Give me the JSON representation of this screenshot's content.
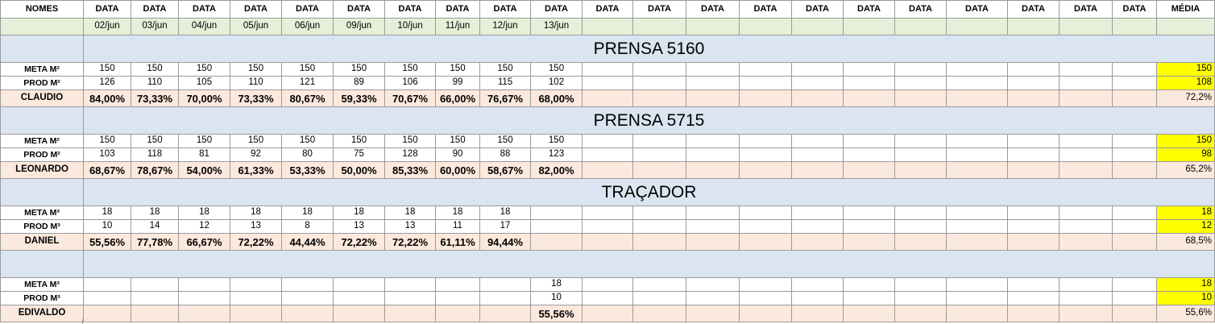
{
  "header": {
    "nomes": "NOMES",
    "data_label": "DATA",
    "media": "MÉDIA"
  },
  "dates": [
    "02/jun",
    "03/jun",
    "04/jun",
    "05/jun",
    "06/jun",
    "09/jun",
    "10/jun",
    "11/jun",
    "12/jun",
    "13/jun",
    "",
    "",
    "",
    "",
    "",
    "",
    "",
    "",
    "",
    "",
    ""
  ],
  "sections": [
    {
      "title": "PRENSA 5160",
      "meta_label": "META M²",
      "prod_label": "PROD M²",
      "person": "CLAUDIO",
      "meta": [
        "150",
        "150",
        "150",
        "150",
        "150",
        "150",
        "150",
        "150",
        "150",
        "150"
      ],
      "prod": [
        "126",
        "110",
        "105",
        "110",
        "121",
        "89",
        "106",
        "99",
        "115",
        "102"
      ],
      "pct": [
        "84,00%",
        "73,33%",
        "70,00%",
        "73,33%",
        "80,67%",
        "59,33%",
        "70,67%",
        "66,00%",
        "76,67%",
        "68,00%"
      ],
      "avg_meta": "150",
      "avg_prod": "108",
      "avg_pct": "72,2%"
    },
    {
      "title": "PRENSA 5715",
      "meta_label": "META M²",
      "prod_label": "PROD M²",
      "person": "LEONARDO",
      "meta": [
        "150",
        "150",
        "150",
        "150",
        "150",
        "150",
        "150",
        "150",
        "150",
        "150"
      ],
      "prod": [
        "103",
        "118",
        "81",
        "92",
        "80",
        "75",
        "128",
        "90",
        "88",
        "123"
      ],
      "pct": [
        "68,67%",
        "78,67%",
        "54,00%",
        "61,33%",
        "53,33%",
        "50,00%",
        "85,33%",
        "60,00%",
        "58,67%",
        "82,00%"
      ],
      "avg_meta": "150",
      "avg_prod": "98",
      "avg_pct": "65,2%"
    },
    {
      "title": "TRAÇADOR",
      "meta_label": "META M³",
      "prod_label": "PROD M³",
      "person": "DANIEL",
      "meta": [
        "18",
        "18",
        "18",
        "18",
        "18",
        "18",
        "18",
        "18",
        "18",
        ""
      ],
      "prod": [
        "10",
        "14",
        "12",
        "13",
        "8",
        "13",
        "13",
        "11",
        "17",
        ""
      ],
      "pct": [
        "55,56%",
        "77,78%",
        "66,67%",
        "72,22%",
        "44,44%",
        "72,22%",
        "72,22%",
        "61,11%",
        "94,44%",
        ""
      ],
      "avg_meta": "18",
      "avg_prod": "12",
      "avg_pct": "68,5%"
    },
    {
      "title": "",
      "meta_label": "META M³",
      "prod_label": "PROD M³",
      "person": "EDIVALDO",
      "meta": [
        "",
        "",
        "",
        "",
        "",
        "",
        "",
        "",
        "",
        "18"
      ],
      "prod": [
        "",
        "",
        "",
        "",
        "",
        "",
        "",
        "",
        "",
        "10"
      ],
      "pct": [
        "",
        "",
        "",
        "",
        "",
        "",
        "",
        "",
        "",
        "55,56%"
      ],
      "avg_meta": "18",
      "avg_prod": "10",
      "avg_pct": "55,6%"
    }
  ]
}
